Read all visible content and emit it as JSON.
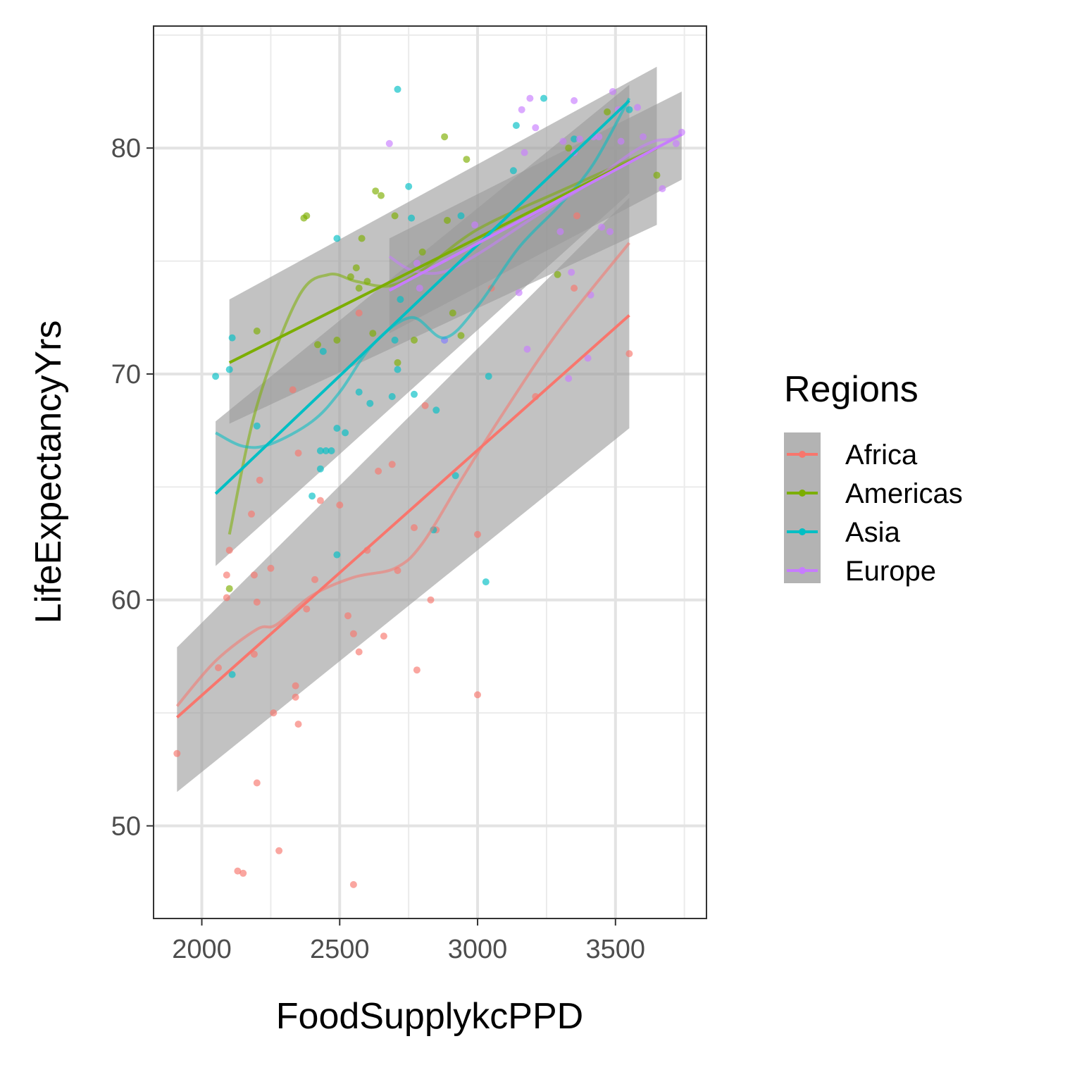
{
  "chart_data": {
    "type": "scatter",
    "xlabel": "FoodSupplykcPPD",
    "ylabel": "LifeExpectancyYrs",
    "xlim": [
      1825,
      3830
    ],
    "ylim": [
      45.9,
      85.4
    ],
    "x_ticks": [
      2000,
      2500,
      3000,
      3500
    ],
    "x_tick_labels": [
      "2000",
      "2500",
      "3000",
      "3500"
    ],
    "y_ticks": [
      50,
      60,
      70,
      80
    ],
    "y_tick_labels": [
      "50",
      "60",
      "70",
      "80"
    ],
    "grid": true,
    "legend": {
      "title": "Regions",
      "position": "right"
    },
    "series": [
      {
        "name": "Africa",
        "color": "#F8766D",
        "points": [
          [
            1910,
            53.2
          ],
          [
            2060,
            57.0
          ],
          [
            2090,
            61.1
          ],
          [
            2090,
            60.1
          ],
          [
            2100,
            62.2
          ],
          [
            2130,
            48.0
          ],
          [
            2150,
            47.9
          ],
          [
            2180,
            63.8
          ],
          [
            2190,
            57.6
          ],
          [
            2190,
            61.1
          ],
          [
            2200,
            59.9
          ],
          [
            2200,
            51.9
          ],
          [
            2210,
            65.3
          ],
          [
            2250,
            61.4
          ],
          [
            2260,
            55.0
          ],
          [
            2280,
            48.9
          ],
          [
            2330,
            69.3
          ],
          [
            2340,
            56.2
          ],
          [
            2340,
            55.7
          ],
          [
            2350,
            54.5
          ],
          [
            2350,
            66.5
          ],
          [
            2380,
            59.6
          ],
          [
            2410,
            60.9
          ],
          [
            2430,
            64.4
          ],
          [
            2500,
            64.2
          ],
          [
            2530,
            59.3
          ],
          [
            2550,
            58.5
          ],
          [
            2550,
            47.4
          ],
          [
            2570,
            72.7
          ],
          [
            2570,
            57.7
          ],
          [
            2600,
            62.2
          ],
          [
            2640,
            65.7
          ],
          [
            2660,
            58.4
          ],
          [
            2690,
            66.0
          ],
          [
            2710,
            61.3
          ],
          [
            2770,
            63.2
          ],
          [
            2780,
            56.9
          ],
          [
            2810,
            68.6
          ],
          [
            2830,
            60.0
          ],
          [
            2850,
            63.1
          ],
          [
            3000,
            62.9
          ],
          [
            3000,
            55.8
          ],
          [
            3050,
            73.8
          ],
          [
            3210,
            69.0
          ],
          [
            3350,
            73.8
          ],
          [
            3360,
            77.0
          ],
          [
            3550,
            70.9
          ]
        ],
        "linear_fit": [
          [
            1910,
            54.8
          ],
          [
            3550,
            72.6
          ]
        ],
        "smooth_fit": [
          [
            1910,
            55.3
          ],
          [
            2050,
            57.3
          ],
          [
            2200,
            58.7
          ],
          [
            2270,
            58.9
          ],
          [
            2400,
            60.2
          ],
          [
            2550,
            61.0
          ],
          [
            2700,
            61.4
          ],
          [
            2800,
            62.5
          ],
          [
            2950,
            65.5
          ],
          [
            3100,
            68.4
          ],
          [
            3300,
            72.0
          ],
          [
            3550,
            75.8
          ]
        ],
        "band": {
          "x": [
            1910,
            3550
          ],
          "upper_left": 57.9,
          "lower_left": 51.5,
          "upper_right": 77.8,
          "lower_right": 67.6
        }
      },
      {
        "name": "Americas",
        "color": "#7CAE00",
        "points": [
          [
            2100,
            60.5
          ],
          [
            2200,
            71.9
          ],
          [
            2370,
            76.9
          ],
          [
            2380,
            77.0
          ],
          [
            2420,
            71.3
          ],
          [
            2490,
            71.5
          ],
          [
            2540,
            74.3
          ],
          [
            2560,
            74.7
          ],
          [
            2570,
            73.8
          ],
          [
            2580,
            76.0
          ],
          [
            2600,
            74.1
          ],
          [
            2620,
            71.8
          ],
          [
            2630,
            78.1
          ],
          [
            2650,
            77.9
          ],
          [
            2700,
            77.0
          ],
          [
            2710,
            70.5
          ],
          [
            2770,
            71.5
          ],
          [
            2800,
            75.4
          ],
          [
            2880,
            80.5
          ],
          [
            2890,
            76.8
          ],
          [
            2910,
            72.7
          ],
          [
            2940,
            71.7
          ],
          [
            2960,
            79.5
          ],
          [
            3290,
            74.4
          ],
          [
            3330,
            80.0
          ],
          [
            3470,
            81.6
          ],
          [
            3650,
            78.8
          ]
        ],
        "linear_fit": [
          [
            2100,
            70.5
          ],
          [
            3650,
            80.0
          ]
        ],
        "smooth_fit": [
          [
            2100,
            62.9
          ],
          [
            2200,
            68.6
          ],
          [
            2350,
            73.4
          ],
          [
            2460,
            74.4
          ],
          [
            2560,
            74.1
          ],
          [
            2680,
            73.9
          ],
          [
            2800,
            74.6
          ],
          [
            3000,
            76.4
          ],
          [
            3300,
            78.1
          ],
          [
            3650,
            80.0
          ]
        ],
        "band": {
          "x": [
            2100,
            3650
          ],
          "upper_left": 73.3,
          "lower_left": 67.8,
          "upper_right": 83.6,
          "lower_right": 76.6
        }
      },
      {
        "name": "Asia",
        "color": "#00BFC4",
        "points": [
          [
            2050,
            69.9
          ],
          [
            2100,
            70.2
          ],
          [
            2110,
            71.6
          ],
          [
            2110,
            56.7
          ],
          [
            2200,
            67.7
          ],
          [
            2400,
            64.6
          ],
          [
            2430,
            66.6
          ],
          [
            2430,
            65.8
          ],
          [
            2440,
            71.0
          ],
          [
            2450,
            66.6
          ],
          [
            2470,
            66.6
          ],
          [
            2490,
            62.0
          ],
          [
            2490,
            67.6
          ],
          [
            2490,
            76.0
          ],
          [
            2520,
            67.4
          ],
          [
            2570,
            69.2
          ],
          [
            2610,
            68.7
          ],
          [
            2690,
            69.0
          ],
          [
            2700,
            71.5
          ],
          [
            2710,
            70.2
          ],
          [
            2710,
            82.6
          ],
          [
            2720,
            73.3
          ],
          [
            2750,
            78.3
          ],
          [
            2760,
            76.9
          ],
          [
            2770,
            69.1
          ],
          [
            2840,
            63.1
          ],
          [
            2850,
            68.4
          ],
          [
            2880,
            71.5
          ],
          [
            2920,
            65.5
          ],
          [
            2940,
            77.0
          ],
          [
            3030,
            60.8
          ],
          [
            3040,
            69.9
          ],
          [
            3130,
            79.0
          ],
          [
            3140,
            81.0
          ],
          [
            3240,
            82.2
          ],
          [
            3350,
            80.4
          ],
          [
            3550,
            81.7
          ]
        ],
        "linear_fit": [
          [
            2050,
            64.7
          ],
          [
            3550,
            82.1
          ]
        ],
        "smooth_fit": [
          [
            2050,
            67.4
          ],
          [
            2150,
            66.8
          ],
          [
            2250,
            66.9
          ],
          [
            2400,
            67.9
          ],
          [
            2500,
            69.2
          ],
          [
            2620,
            71.3
          ],
          [
            2760,
            72.5
          ],
          [
            2880,
            71.6
          ],
          [
            3000,
            73.0
          ],
          [
            3150,
            75.6
          ],
          [
            3300,
            77.5
          ],
          [
            3420,
            79.3
          ],
          [
            3550,
            82.2
          ]
        ],
        "band": {
          "x": [
            2050,
            3550
          ],
          "upper_left": 67.9,
          "lower_left": 61.5,
          "upper_right": 82.8,
          "lower_right": 78.0
        }
      },
      {
        "name": "Europe",
        "color": "#C77CFF",
        "points": [
          [
            2680,
            80.2
          ],
          [
            2780,
            74.9
          ],
          [
            2790,
            73.8
          ],
          [
            2880,
            71.5
          ],
          [
            2990,
            76.6
          ],
          [
            3150,
            73.6
          ],
          [
            3160,
            81.7
          ],
          [
            3170,
            79.8
          ],
          [
            3180,
            71.1
          ],
          [
            3190,
            82.2
          ],
          [
            3210,
            80.9
          ],
          [
            3300,
            76.3
          ],
          [
            3310,
            80.3
          ],
          [
            3330,
            69.8
          ],
          [
            3340,
            74.5
          ],
          [
            3350,
            79.8
          ],
          [
            3350,
            82.1
          ],
          [
            3370,
            80.4
          ],
          [
            3400,
            70.7
          ],
          [
            3410,
            73.5
          ],
          [
            3420,
            80.5
          ],
          [
            3440,
            80.5
          ],
          [
            3450,
            76.5
          ],
          [
            3480,
            76.3
          ],
          [
            3490,
            82.5
          ],
          [
            3510,
            81.7
          ],
          [
            3520,
            80.3
          ],
          [
            3580,
            81.8
          ],
          [
            3600,
            80.5
          ],
          [
            3670,
            78.2
          ],
          [
            3720,
            80.2
          ],
          [
            3740,
            80.7
          ]
        ],
        "linear_fit": [
          [
            2680,
            73.7
          ],
          [
            3740,
            80.6
          ]
        ],
        "smooth_fit": [
          [
            2680,
            75.2
          ],
          [
            2760,
            74.6
          ],
          [
            2870,
            74.5
          ],
          [
            3000,
            75.3
          ],
          [
            3200,
            76.9
          ],
          [
            3400,
            78.4
          ],
          [
            3560,
            79.8
          ],
          [
            3640,
            80.3
          ],
          [
            3700,
            80.4
          ],
          [
            3740,
            80.6
          ]
        ],
        "band": {
          "x": [
            2680,
            3740
          ],
          "upper_left": 76.0,
          "lower_left": 71.8,
          "upper_right": 82.5,
          "lower_right": 78.6
        }
      }
    ]
  }
}
